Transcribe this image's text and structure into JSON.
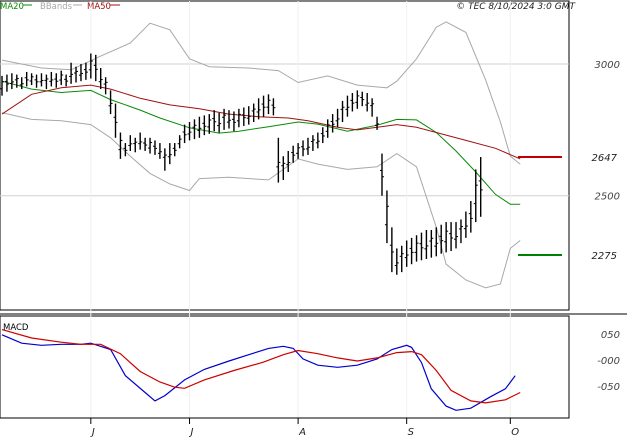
{
  "header": {
    "legend": [
      {
        "label": "MA20",
        "color": "#0a8a0a"
      },
      {
        "label": "BBands",
        "color": "#a8a8a8"
      },
      {
        "label": "MA50",
        "color": "#a01010"
      }
    ],
    "copyright": "© TEC 8/10/2024 3:0 GMT"
  },
  "macd_panel": {
    "label": "MACD"
  },
  "chart_data": [
    {
      "type": "line",
      "panel": "price",
      "ylim": [
        2070,
        3190
      ],
      "y_ticks": [
        3000,
        2500
      ],
      "x_labels": [
        {
          "label": "J",
          "index": 18
        },
        {
          "label": "J",
          "index": 38
        },
        {
          "label": "A",
          "index": 60
        },
        {
          "label": "S",
          "index": 82
        },
        {
          "label": "O",
          "index": 103
        }
      ],
      "n_sessions": 107,
      "grid": true,
      "series": [
        {
          "name": "MA20",
          "color": "#0a8a0a",
          "points": [
            [
              0,
              2935
            ],
            [
              6,
              2905
            ],
            [
              12,
              2892
            ],
            [
              18,
              2900
            ],
            [
              22,
              2865
            ],
            [
              28,
              2825
            ],
            [
              32,
              2795
            ],
            [
              38,
              2758
            ],
            [
              44,
              2738
            ],
            [
              48,
              2745
            ],
            [
              54,
              2762
            ],
            [
              60,
              2780
            ],
            [
              64,
              2772
            ],
            [
              70,
              2745
            ],
            [
              76,
              2768
            ],
            [
              80,
              2790
            ],
            [
              84,
              2788
            ],
            [
              88,
              2740
            ],
            [
              92,
              2670
            ],
            [
              96,
              2590
            ],
            [
              100,
              2505
            ],
            [
              103,
              2468
            ],
            [
              105,
              2468
            ]
          ]
        },
        {
          "name": "BBands",
          "color": "#a8a8a8",
          "points": [
            [
              0,
              3015
            ],
            [
              8,
              2985
            ],
            [
              14,
              2978
            ],
            [
              20,
              3030
            ],
            [
              26,
              3080
            ],
            [
              30,
              3155
            ],
            [
              34,
              3130
            ],
            [
              38,
              3020
            ],
            [
              42,
              2990
            ],
            [
              50,
              2985
            ],
            [
              56,
              2975
            ],
            [
              60,
              2930
            ],
            [
              66,
              2955
            ],
            [
              72,
              2920
            ],
            [
              78,
              2910
            ],
            [
              80,
              2935
            ],
            [
              84,
              3020
            ],
            [
              88,
              3140
            ],
            [
              90,
              3160
            ],
            [
              94,
              3120
            ],
            [
              98,
              2940
            ],
            [
              101,
              2780
            ],
            [
              103,
              2650
            ],
            [
              105,
              2620
            ]
          ]
        },
        {
          "name": "BBands",
          "color": "#a8a8a8",
          "points": [
            [
              0,
              2815
            ],
            [
              6,
              2790
            ],
            [
              12,
              2785
            ],
            [
              18,
              2770
            ],
            [
              22,
              2720
            ],
            [
              26,
              2650
            ],
            [
              30,
              2585
            ],
            [
              34,
              2545
            ],
            [
              38,
              2520
            ],
            [
              40,
              2565
            ],
            [
              46,
              2570
            ],
            [
              54,
              2560
            ],
            [
              60,
              2640
            ],
            [
              64,
              2620
            ],
            [
              70,
              2600
            ],
            [
              76,
              2610
            ],
            [
              80,
              2660
            ],
            [
              84,
              2610
            ],
            [
              88,
              2380
            ],
            [
              90,
              2240
            ],
            [
              94,
              2180
            ],
            [
              98,
              2150
            ],
            [
              101,
              2165
            ],
            [
              103,
              2300
            ],
            [
              105,
              2330
            ]
          ]
        },
        {
          "name": "MA50",
          "color": "#a01010",
          "points": [
            [
              0,
              2810
            ],
            [
              6,
              2885
            ],
            [
              12,
              2910
            ],
            [
              18,
              2920
            ],
            [
              22,
              2905
            ],
            [
              28,
              2870
            ],
            [
              34,
              2845
            ],
            [
              40,
              2830
            ],
            [
              46,
              2810
            ],
            [
              52,
              2800
            ],
            [
              58,
              2795
            ],
            [
              62,
              2785
            ],
            [
              68,
              2760
            ],
            [
              72,
              2750
            ],
            [
              76,
              2760
            ],
            [
              80,
              2770
            ],
            [
              84,
              2760
            ],
            [
              88,
              2740
            ],
            [
              94,
              2710
            ],
            [
              100,
              2680
            ],
            [
              105,
              2640
            ]
          ]
        }
      ],
      "ohlc": [
        [
          2880,
          2955
        ],
        [
          2895,
          2960
        ],
        [
          2905,
          2965
        ],
        [
          2910,
          2960
        ],
        [
          2905,
          2950
        ],
        [
          2915,
          2970
        ],
        [
          2920,
          2965
        ],
        [
          2910,
          2960
        ],
        [
          2915,
          2965
        ],
        [
          2905,
          2960
        ],
        [
          2915,
          2970
        ],
        [
          2910,
          2965
        ],
        [
          2920,
          2975
        ],
        [
          2915,
          2960
        ],
        [
          2925,
          3005
        ],
        [
          2930,
          2990
        ],
        [
          2935,
          3000
        ],
        [
          2940,
          3005
        ],
        [
          2945,
          3040
        ],
        [
          2935,
          3035
        ],
        [
          2905,
          2985
        ],
        [
          2885,
          2950
        ],
        [
          2810,
          2900
        ],
        [
          2720,
          2850
        ],
        [
          2640,
          2740
        ],
        [
          2650,
          2700
        ],
        [
          2670,
          2730
        ],
        [
          2665,
          2720
        ],
        [
          2675,
          2740
        ],
        [
          2670,
          2720
        ],
        [
          2660,
          2720
        ],
        [
          2655,
          2710
        ],
        [
          2640,
          2700
        ],
        [
          2595,
          2680
        ],
        [
          2620,
          2700
        ],
        [
          2650,
          2700
        ],
        [
          2680,
          2730
        ],
        [
          2700,
          2770
        ],
        [
          2710,
          2780
        ],
        [
          2715,
          2790
        ],
        [
          2720,
          2800
        ],
        [
          2730,
          2805
        ],
        [
          2735,
          2810
        ],
        [
          2745,
          2825
        ],
        [
          2740,
          2815
        ],
        [
          2750,
          2830
        ],
        [
          2755,
          2825
        ],
        [
          2745,
          2820
        ],
        [
          2760,
          2830
        ],
        [
          2765,
          2835
        ],
        [
          2770,
          2840
        ],
        [
          2780,
          2850
        ],
        [
          2790,
          2870
        ],
        [
          2800,
          2880
        ],
        [
          2810,
          2885
        ],
        [
          2805,
          2870
        ],
        [
          2550,
          2720
        ],
        [
          2560,
          2650
        ],
        [
          2590,
          2670
        ],
        [
          2625,
          2690
        ],
        [
          2640,
          2700
        ],
        [
          2650,
          2710
        ],
        [
          2655,
          2720
        ],
        [
          2670,
          2730
        ],
        [
          2680,
          2740
        ],
        [
          2700,
          2760
        ],
        [
          2720,
          2790
        ],
        [
          2740,
          2810
        ],
        [
          2760,
          2830
        ],
        [
          2780,
          2860
        ],
        [
          2800,
          2880
        ],
        [
          2820,
          2890
        ],
        [
          2830,
          2900
        ],
        [
          2840,
          2895
        ],
        [
          2820,
          2890
        ],
        [
          2800,
          2870
        ],
        [
          2750,
          2800
        ],
        [
          2500,
          2660
        ],
        [
          2320,
          2520
        ],
        [
          2210,
          2380
        ],
        [
          2200,
          2300
        ],
        [
          2210,
          2310
        ],
        [
          2230,
          2330
        ],
        [
          2240,
          2340
        ],
        [
          2250,
          2350
        ],
        [
          2255,
          2360
        ],
        [
          2260,
          2370
        ],
        [
          2265,
          2370
        ],
        [
          2270,
          2380
        ],
        [
          2280,
          2390
        ],
        [
          2285,
          2400
        ],
        [
          2290,
          2400
        ],
        [
          2300,
          2400
        ],
        [
          2320,
          2410
        ],
        [
          2340,
          2440
        ],
        [
          2360,
          2480
        ],
        [
          2400,
          2600
        ],
        [
          2420,
          2647
        ]
      ],
      "annotations": [
        {
          "label": "2647",
          "value": 2647,
          "color": "#c00000"
        },
        {
          "label": "2275",
          "value": 2275,
          "color": "#008000"
        }
      ]
    },
    {
      "type": "line",
      "panel": "MACD",
      "ylim": [
        -105,
        82
      ],
      "y_ticks": [
        50,
        0,
        -50
      ],
      "y_tick_labels": [
        "050",
        "-000",
        "-050"
      ],
      "grid": false,
      "series": [
        {
          "name": "MACD",
          "color": "#0000cc",
          "points": [
            [
              0,
              48
            ],
            [
              4,
              32
            ],
            [
              8,
              28
            ],
            [
              12,
              30
            ],
            [
              16,
              30
            ],
            [
              18,
              32
            ],
            [
              22,
              20
            ],
            [
              25,
              -30
            ],
            [
              29,
              -62
            ],
            [
              31,
              -78
            ],
            [
              33,
              -68
            ],
            [
              37,
              -38
            ],
            [
              41,
              -18
            ],
            [
              46,
              -2
            ],
            [
              50,
              10
            ],
            [
              54,
              22
            ],
            [
              57,
              26
            ],
            [
              59,
              22
            ],
            [
              61,
              2
            ],
            [
              64,
              -10
            ],
            [
              68,
              -14
            ],
            [
              72,
              -10
            ],
            [
              76,
              2
            ],
            [
              79,
              20
            ],
            [
              82,
              28
            ],
            [
              83,
              24
            ],
            [
              85,
              -5
            ],
            [
              87,
              -55
            ],
            [
              90,
              -88
            ],
            [
              92,
              -96
            ],
            [
              95,
              -92
            ],
            [
              99,
              -70
            ],
            [
              102,
              -55
            ],
            [
              104,
              -30
            ]
          ]
        },
        {
          "name": "Signal",
          "color": "#cc0000",
          "points": [
            [
              0,
              58
            ],
            [
              6,
              42
            ],
            [
              12,
              34
            ],
            [
              16,
              30
            ],
            [
              20,
              30
            ],
            [
              24,
              12
            ],
            [
              28,
              -22
            ],
            [
              32,
              -42
            ],
            [
              35,
              -52
            ],
            [
              37,
              -54
            ],
            [
              41,
              -38
            ],
            [
              47,
              -20
            ],
            [
              53,
              -4
            ],
            [
              57,
              10
            ],
            [
              60,
              18
            ],
            [
              64,
              12
            ],
            [
              68,
              4
            ],
            [
              72,
              -2
            ],
            [
              76,
              4
            ],
            [
              80,
              14
            ],
            [
              83,
              16
            ],
            [
              85,
              10
            ],
            [
              88,
              -20
            ],
            [
              91,
              -58
            ],
            [
              95,
              -78
            ],
            [
              98,
              -82
            ],
            [
              102,
              -76
            ],
            [
              105,
              -62
            ]
          ]
        }
      ]
    }
  ]
}
